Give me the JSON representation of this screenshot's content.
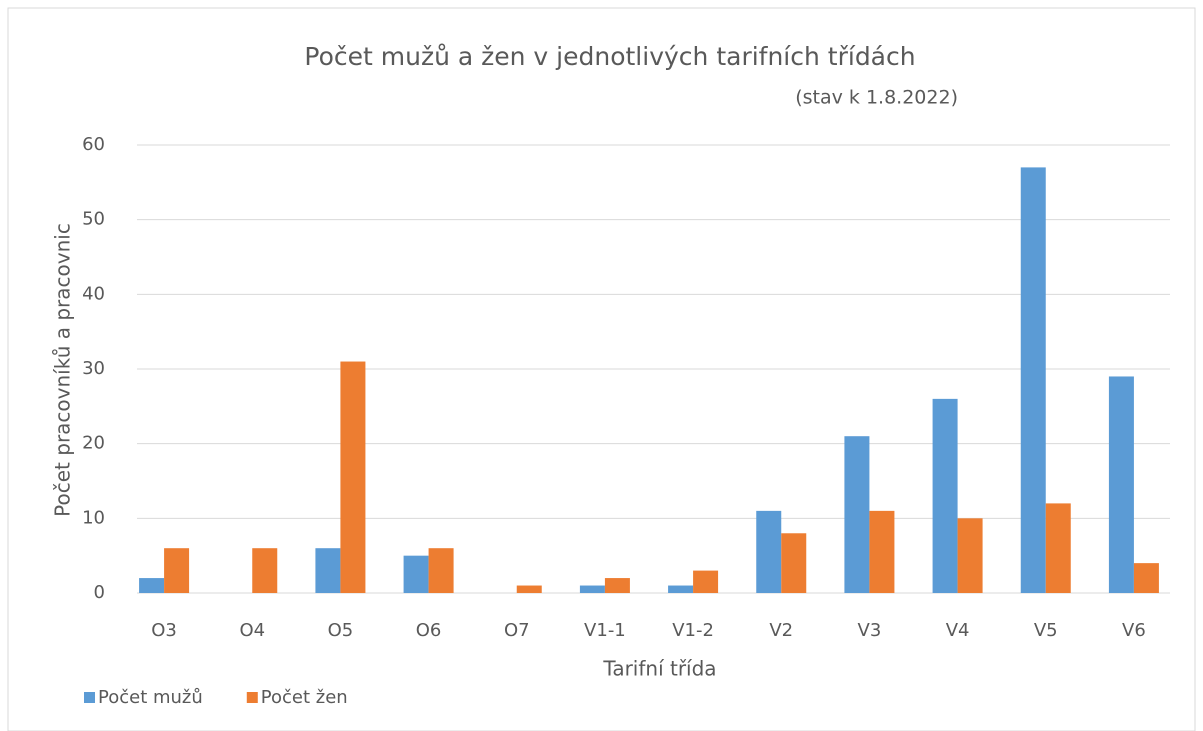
{
  "chart_data": {
    "type": "bar",
    "title": "Počet mužů a žen v jednotlivých tarifních třídách",
    "subtitle": "(stav k 1.8.2022)",
    "x_label": "Tarifní třída",
    "y_label": "Počet pracovníků a pracovnic",
    "categories": [
      "O3",
      "O4",
      "O5",
      "O6",
      "O7",
      "V1-1",
      "V1-2",
      "V2",
      "V3",
      "V4",
      "V5",
      "V6"
    ],
    "series": [
      {
        "name": "Počet mužů",
        "color": "#5b9bd5",
        "values": [
          2,
          0,
          6,
          5,
          0,
          1,
          1,
          11,
          21,
          26,
          57,
          29
        ]
      },
      {
        "name": "Počet žen",
        "color": "#ed7d31",
        "values": [
          6,
          6,
          31,
          6,
          1,
          2,
          3,
          8,
          11,
          10,
          12,
          4
        ]
      }
    ],
    "ylim": [
      0,
      60
    ],
    "yticks": [
      0,
      10,
      20,
      30,
      40,
      50,
      60
    ],
    "grid": true,
    "legend": "bottom-left"
  }
}
